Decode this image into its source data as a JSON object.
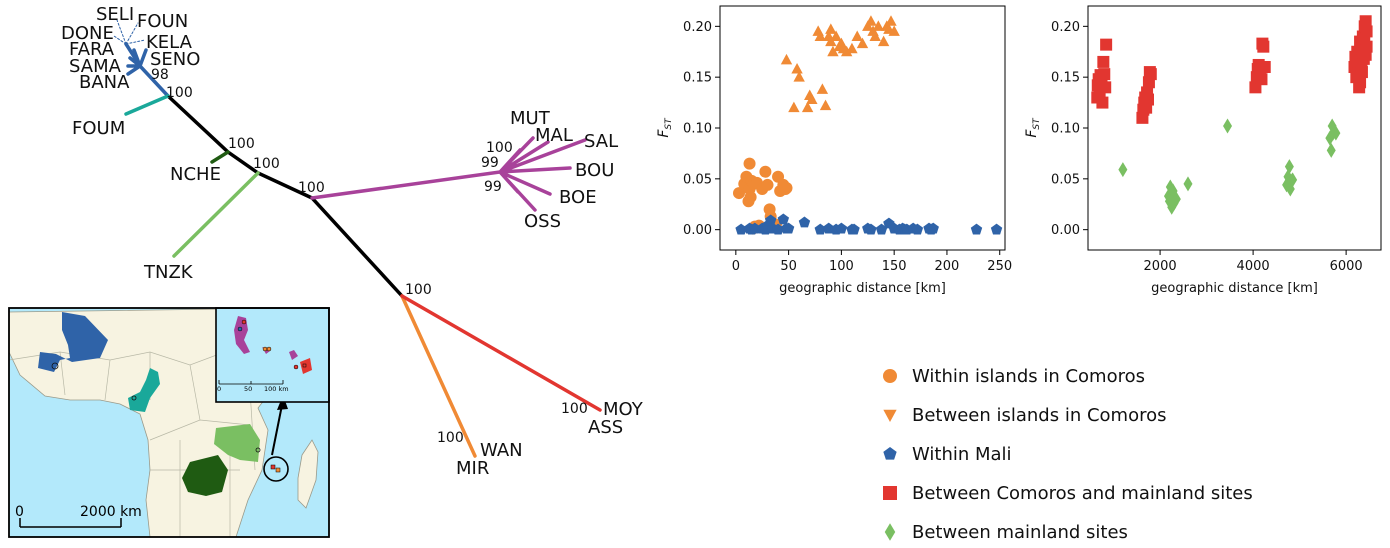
{
  "figure": {
    "colors": {
      "black": "#000000",
      "dark_blue": "#2f63a8",
      "teal": "#1aa89a",
      "dark_green": "#1f5b12",
      "light_green": "#7abf62",
      "purple": "#a8429a",
      "orange": "#f08a35",
      "red": "#e23630",
      "ocean": "#b3e9fb",
      "land": "#f7f3e1"
    }
  },
  "tree": {
    "leaf_labels": [
      "SELI",
      "FOUN",
      "DONE",
      "KELA",
      "FARA",
      "SENO",
      "SAMA",
      "BANA",
      "FOUM",
      "NCHE",
      "TNZK",
      "MUT",
      "MAL",
      "SAL",
      "BOU",
      "BOE",
      "OSS",
      "WAN",
      "MIR",
      "MOY",
      "ASS"
    ],
    "bootstrap_labels": [
      "98",
      "100",
      "100",
      "100",
      "100",
      "100",
      "99",
      "99",
      "100",
      "100",
      "100",
      "100"
    ]
  },
  "map": {
    "scale_label_left": "0",
    "scale_label_right": "2000 km",
    "inset_scale_labels": [
      "0",
      "50",
      "100 km"
    ]
  },
  "legend": {
    "items": [
      {
        "label": "Within islands in Comoros",
        "color": "#f08a35",
        "marker": "circle"
      },
      {
        "label": "Between islands in Comoros",
        "color": "#f08a35",
        "marker": "triangle-down"
      },
      {
        "label": "Within Mali",
        "color": "#2f63a8",
        "marker": "pentagon"
      },
      {
        "label": "Between Comoros and mainland sites",
        "color": "#e23630",
        "marker": "square"
      },
      {
        "label": "Between mainland sites",
        "color": "#7abf62",
        "marker": "diamond"
      }
    ]
  },
  "chart_data": [
    {
      "type": "scatter",
      "xlabel": "geographic distance [km]",
      "ylabel": "F",
      "ylabel_sub": "ST",
      "xlim": [
        -15,
        255
      ],
      "ylim": [
        -0.02,
        0.22
      ],
      "xticks": [
        0,
        50,
        100,
        150,
        200,
        250
      ],
      "yticks": [
        0.0,
        0.05,
        0.1,
        0.15,
        0.2
      ],
      "grid": false,
      "series": [
        {
          "marker": "circle",
          "color": "#f08a35",
          "x": [
            3,
            8,
            10,
            12,
            13,
            13,
            14,
            15,
            16,
            17,
            18,
            20,
            22,
            25,
            28,
            30,
            32,
            33,
            38,
            40,
            42,
            45,
            47,
            48
          ],
          "y": [
            0.036,
            0.045,
            0.052,
            0.028,
            0.065,
            0.04,
            0.032,
            0.048,
            0.001,
            0.045,
            0.003,
            0.046,
            0.004,
            0.04,
            0.057,
            0.044,
            0.02,
            0.013,
            0.005,
            0.052,
            0.038,
            0.044,
            0.04,
            0.041
          ]
        },
        {
          "marker": "triangle",
          "color": "#f08a35",
          "x": [
            48,
            55,
            58,
            60,
            68,
            70,
            72,
            78,
            80,
            82,
            85,
            88,
            90,
            90,
            92,
            95,
            98,
            100,
            102,
            105,
            110,
            115,
            120,
            125,
            128,
            130,
            132,
            135,
            140,
            143,
            145,
            147,
            150
          ],
          "y": [
            0.167,
            0.12,
            0.158,
            0.15,
            0.12,
            0.132,
            0.128,
            0.195,
            0.19,
            0.138,
            0.122,
            0.19,
            0.197,
            0.185,
            0.175,
            0.19,
            0.18,
            0.183,
            0.178,
            0.175,
            0.178,
            0.19,
            0.183,
            0.2,
            0.205,
            0.195,
            0.19,
            0.2,
            0.185,
            0.2,
            0.197,
            0.205,
            0.195
          ]
        },
        {
          "marker": "pentagon",
          "color": "#2f63a8",
          "x": [
            5,
            13,
            15,
            18,
            25,
            28,
            30,
            33,
            35,
            40,
            45,
            48,
            50,
            65,
            80,
            88,
            95,
            100,
            110,
            112,
            125,
            128,
            138,
            145,
            150,
            155,
            158,
            160,
            162,
            168,
            172,
            183,
            185,
            187,
            228,
            247
          ],
          "y": [
            0.0,
            0.001,
            0.0,
            0.001,
            0.001,
            0.0,
            0.004,
            0.009,
            0.001,
            0.0,
            0.01,
            0.001,
            0.001,
            0.007,
            0.0,
            0.001,
            0.0,
            0.001,
            0.0,
            0.0,
            0.001,
            0.0,
            0.0,
            0.006,
            0.001,
            0.0,
            0.001,
            0.0,
            0.0,
            0.001,
            0.0,
            0.001,
            0.0,
            0.001,
            0.0,
            0.0
          ]
        }
      ]
    },
    {
      "type": "scatter",
      "xlabel": "geographic distance [km]",
      "ylabel": "F",
      "ylabel_sub": "ST",
      "xlim": [
        450,
        6750
      ],
      "ylim": [
        -0.02,
        0.22
      ],
      "xticks": [
        2000,
        4000,
        6000
      ],
      "yticks": [
        0.0,
        0.05,
        0.1,
        0.15,
        0.2
      ],
      "grid": false,
      "series": [
        {
          "marker": "square",
          "color": "#e23630",
          "x": [
            650,
            660,
            680,
            700,
            720,
            740,
            760,
            780,
            800,
            820,
            840,
            1620,
            1640,
            1660,
            1680,
            1700,
            1720,
            1740,
            1760,
            1780,
            1800,
            4050,
            4080,
            4100,
            4120,
            4150,
            4180,
            4200,
            4220,
            4250,
            6180,
            6200,
            6220,
            6240,
            6260,
            6280,
            6300,
            6320,
            6340,
            6360,
            6380,
            6400,
            6420,
            6440,
            6300,
            6330,
            6360,
            6390,
            6420,
            6440
          ],
          "y": [
            0.13,
            0.142,
            0.148,
            0.136,
            0.152,
            0.145,
            0.125,
            0.165,
            0.153,
            0.14,
            0.182,
            0.11,
            0.118,
            0.125,
            0.13,
            0.12,
            0.135,
            0.128,
            0.145,
            0.155,
            0.153,
            0.14,
            0.15,
            0.158,
            0.162,
            0.155,
            0.148,
            0.183,
            0.18,
            0.16,
            0.16,
            0.17,
            0.15,
            0.175,
            0.165,
            0.14,
            0.185,
            0.178,
            0.155,
            0.19,
            0.168,
            0.2,
            0.172,
            0.195,
            0.145,
            0.162,
            0.175,
            0.188,
            0.205,
            0.18
          ]
        },
        {
          "marker": "diamond",
          "color": "#7abf62",
          "x": [
            1200,
            2180,
            2200,
            2220,
            2250,
            2280,
            2300,
            2320,
            2350,
            2600,
            3450,
            4720,
            4750,
            4780,
            4800,
            4830,
            4850,
            5650,
            5680,
            5700,
            5720,
            5780
          ],
          "y": [
            0.059,
            0.033,
            0.028,
            0.042,
            0.022,
            0.038,
            0.026,
            0.031,
            0.03,
            0.045,
            0.102,
            0.044,
            0.052,
            0.062,
            0.04,
            0.048,
            0.049,
            0.09,
            0.078,
            0.102,
            0.095,
            0.095
          ]
        }
      ]
    }
  ]
}
